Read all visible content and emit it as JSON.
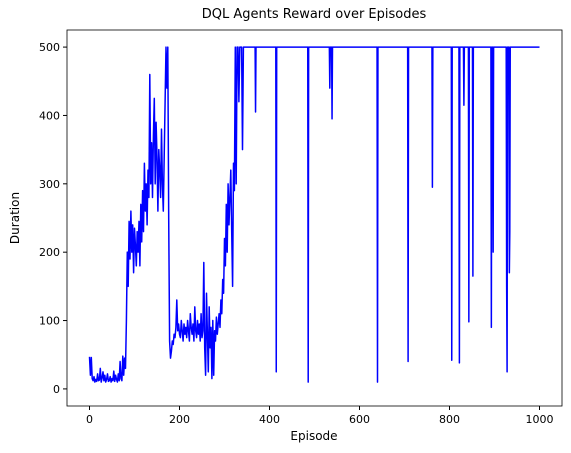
{
  "chart_data": {
    "type": "line",
    "title": "DQL Agents Reward over Episodes",
    "xlabel": "Episode",
    "ylabel": "Duration",
    "xlim": [
      -50,
      1050
    ],
    "ylim": [
      -25,
      525
    ],
    "xticks": [
      0,
      200,
      400,
      600,
      800,
      1000
    ],
    "yticks": [
      0,
      100,
      200,
      300,
      400,
      500
    ],
    "grid": false,
    "x": [
      0,
      2,
      4,
      6,
      8,
      10,
      12,
      14,
      16,
      18,
      20,
      22,
      24,
      26,
      28,
      30,
      32,
      34,
      36,
      38,
      40,
      42,
      44,
      46,
      48,
      50,
      52,
      54,
      56,
      58,
      60,
      62,
      64,
      66,
      68,
      70,
      72,
      74,
      76,
      78,
      80,
      82,
      84,
      86,
      88,
      90,
      92,
      94,
      96,
      98,
      100,
      102,
      104,
      106,
      108,
      110,
      112,
      114,
      116,
      118,
      120,
      122,
      124,
      126,
      128,
      130,
      132,
      134,
      136,
      138,
      140,
      142,
      144,
      146,
      148,
      150,
      152,
      154,
      156,
      158,
      160,
      162,
      164,
      166,
      168,
      170,
      172,
      174,
      176,
      178,
      180,
      182,
      184,
      186,
      188,
      190,
      192,
      194,
      196,
      198,
      200,
      202,
      204,
      206,
      208,
      210,
      212,
      214,
      216,
      218,
      220,
      222,
      224,
      226,
      228,
      230,
      232,
      234,
      236,
      238,
      240,
      242,
      244,
      246,
      248,
      250,
      252,
      254,
      256,
      258,
      260,
      262,
      264,
      266,
      268,
      270,
      272,
      274,
      276,
      278,
      280,
      282,
      284,
      286,
      288,
      290,
      292,
      294,
      296,
      298,
      300,
      302,
      304,
      306,
      308,
      310,
      312,
      314,
      316,
      318,
      320,
      322,
      324,
      326,
      328,
      330,
      332,
      334,
      336,
      338,
      340,
      342,
      368,
      369,
      370,
      414,
      415,
      416,
      485,
      486,
      487,
      533,
      534,
      535,
      538,
      539,
      540,
      639,
      640,
      641,
      707,
      708,
      709,
      761,
      762,
      763,
      804,
      805,
      806,
      821,
      822,
      823,
      831,
      832,
      833,
      842,
      843,
      844,
      851,
      852,
      853,
      892,
      893,
      894,
      896,
      897,
      898,
      926,
      927,
      928,
      929,
      932,
      933,
      934,
      935,
      1000
    ],
    "series": [
      {
        "name": "Duration",
        "color": "#0000ff",
        "values": [
          47,
          20,
          46,
          15,
          12,
          18,
          10,
          14,
          11,
          22,
          12,
          13,
          30,
          10,
          16,
          25,
          12,
          20,
          10,
          14,
          22,
          11,
          12,
          18,
          10,
          15,
          12,
          26,
          11,
          20,
          14,
          10,
          22,
          12,
          40,
          15,
          12,
          48,
          20,
          45,
          30,
          100,
          200,
          150,
          245,
          190,
          260,
          200,
          240,
          170,
          235,
          210,
          180,
          230,
          200,
          245,
          180,
          270,
          215,
          290,
          230,
          330,
          260,
          300,
          240,
          320,
          280,
          460,
          300,
          360,
          280,
          370,
          425,
          300,
          390,
          340,
          260,
          350,
          320,
          280,
          380,
          300,
          260,
          340,
          420,
          500,
          440,
          500,
          250,
          70,
          45,
          55,
          70,
          65,
          80,
          75,
          90,
          130,
          85,
          95,
          80,
          75,
          100,
          85,
          70,
          95,
          80,
          90,
          75,
          100,
          85,
          70,
          110,
          90,
          80,
          95,
          70,
          120,
          85,
          75,
          100,
          80,
          95,
          70,
          110,
          75,
          85,
          185,
          60,
          20,
          140,
          80,
          25,
          120,
          60,
          90,
          15,
          100,
          20,
          85,
          70,
          105,
          80,
          95,
          110,
          90,
          130,
          110,
          160,
          140,
          220,
          180,
          270,
          200,
          300,
          240,
          280,
          320,
          230,
          150,
          330,
          290,
          500,
          300,
          500,
          500,
          420,
          500,
          500,
          500,
          350,
          500,
          500,
          405,
          500,
          500,
          25,
          500,
          500,
          10,
          500,
          500,
          440,
          500,
          500,
          395,
          500,
          500,
          10,
          500,
          500,
          40,
          500,
          500,
          295,
          500,
          500,
          42,
          500,
          500,
          38,
          500,
          500,
          415,
          500,
          500,
          98,
          500,
          500,
          165,
          500,
          500,
          90,
          500,
          500,
          200,
          500,
          500,
          150,
          25,
          500,
          500,
          170,
          230,
          500,
          500
        ]
      }
    ]
  }
}
